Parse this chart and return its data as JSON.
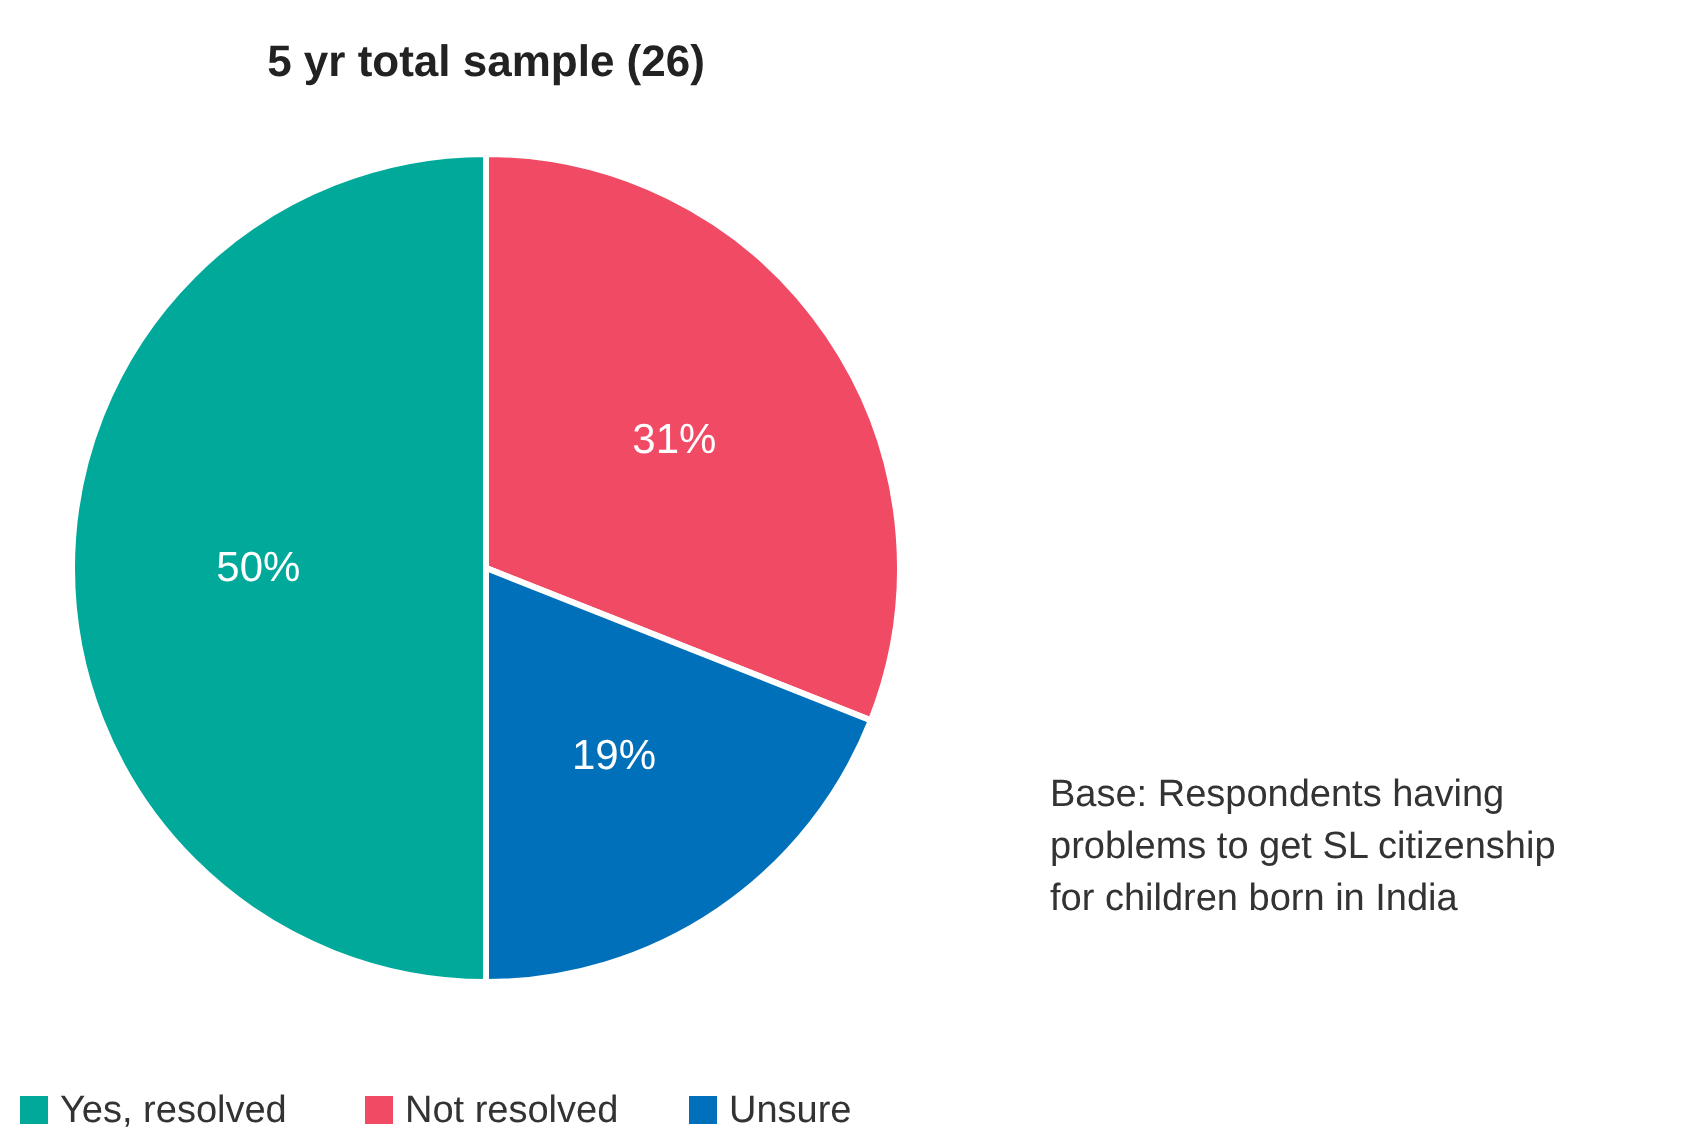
{
  "chart_data": {
    "type": "pie",
    "title": "5 yr total sample (26)",
    "categories": [
      "Yes, resolved",
      "Not resolved",
      "Unsure"
    ],
    "values": [
      50,
      31,
      19
    ],
    "colors": [
      "#00a99a",
      "#f04a64",
      "#0070ba"
    ],
    "value_labels": [
      "50%",
      "31%",
      "19%"
    ],
    "legend": "bottom",
    "annotations": [
      "Base: Respondents having problems to get SL citizenship for children born in India"
    ]
  }
}
